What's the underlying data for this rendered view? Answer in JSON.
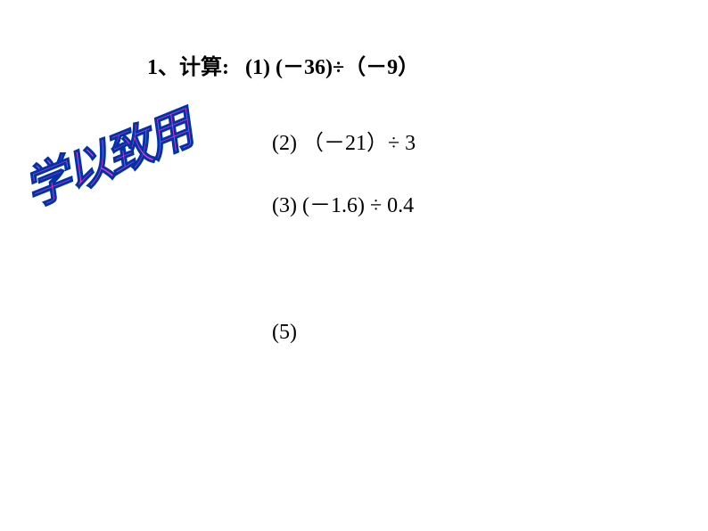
{
  "title": {
    "number": "1",
    "cjk_comma": "、",
    "label": "计算",
    "colon": ":",
    "problem1_num": "(1)",
    "problem1_expr": "(－36)÷（－9）"
  },
  "decorative": {
    "text": "学以致用",
    "strokeColor": "#0033aa",
    "fillColor": "#ee33cc",
    "fontSize": 42
  },
  "problem2": {
    "num": "(2)",
    "expr": "（－21）÷  3"
  },
  "problem3": {
    "num": "(3)",
    "expr": "(－1.6) ÷ 0.4"
  },
  "problem5": {
    "num": "(5)"
  },
  "colors": {
    "background": "#ffffff",
    "text": "#000000"
  }
}
